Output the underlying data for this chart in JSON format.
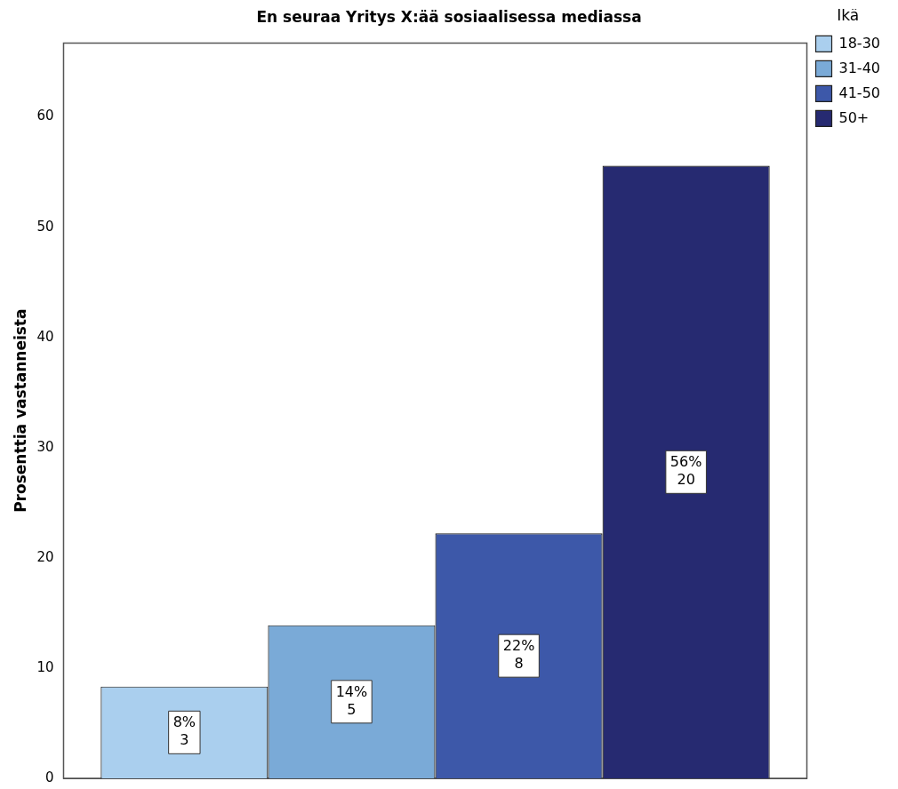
{
  "chart_data": {
    "type": "bar",
    "title": "En seuraa Yritys X:ää sosiaalisessa mediassa",
    "ylabel": "Prosenttia vastanneista",
    "legend_title": "Ikä",
    "categories": [
      null
    ],
    "series": [
      {
        "name": "18-30",
        "color": "#aacfee",
        "values": [
          8.33
        ],
        "value_labels": [
          "8%\n3"
        ]
      },
      {
        "name": "31-40",
        "color": "#7aaad7",
        "values": [
          13.89
        ],
        "value_labels": [
          "14%\n5"
        ]
      },
      {
        "name": "41-50",
        "color": "#3d58a9",
        "values": [
          22.22
        ],
        "value_labels": [
          "22%\n8"
        ]
      },
      {
        "name": "50+",
        "color": "#262a71",
        "values": [
          55.56
        ],
        "value_labels": [
          "56%\n20"
        ]
      }
    ],
    "ylim": [
      0,
      66.7
    ],
    "yticks": [
      0,
      10,
      20,
      30,
      40,
      50,
      60
    ],
    "grid": false,
    "legend": "top right"
  }
}
